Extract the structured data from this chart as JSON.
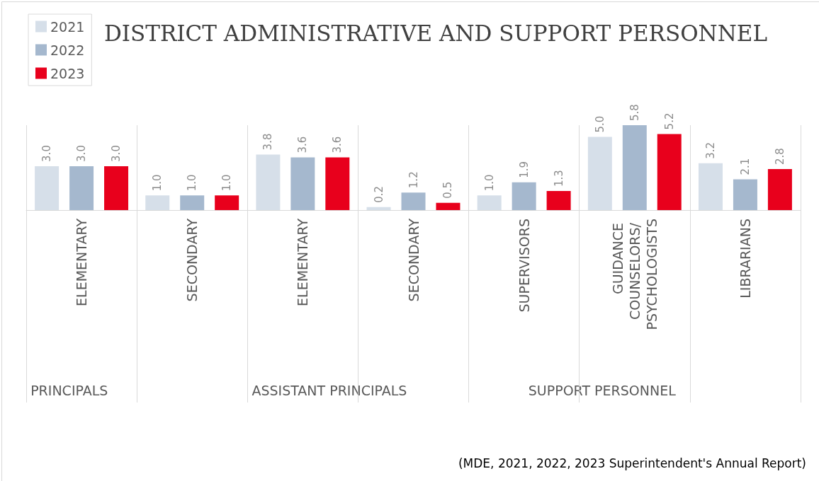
{
  "chart_data": {
    "type": "bar",
    "title": "DISTRICT ADMINISTRATIVE AND SUPPORT PERSONNEL",
    "categories": [
      "ELEMENTARY",
      "SECONDARY",
      "ELEMENTARY",
      "SECONDARY",
      "SUPERVISORS",
      "GUIDANCE COUNSELORS/ PSYCHOLOGISTS",
      "LIBRARIANS"
    ],
    "series": [
      {
        "name": "2021",
        "color": "#d6dfe9",
        "values": [
          3.0,
          1.0,
          3.8,
          0.2,
          1.0,
          5.0,
          3.2
        ],
        "value_labels": [
          "3.0",
          "1.0",
          "3.8",
          "0.2",
          "1.0",
          "5.0",
          "3.2"
        ]
      },
      {
        "name": "2022",
        "color": "#a5b8ce",
        "values": [
          3.0,
          1.0,
          3.6,
          1.2,
          1.9,
          5.8,
          2.1
        ],
        "value_labels": [
          "3.0",
          "1.0",
          "3.6",
          "1.2",
          "1.9",
          "5.8",
          "2.1"
        ]
      },
      {
        "name": "2023",
        "color": "#e8001c",
        "values": [
          3.0,
          1.0,
          3.6,
          0.5,
          1.3,
          5.2,
          2.8
        ],
        "value_labels": [
          "3.0",
          "1.0",
          "3.6",
          "0.5",
          "1.3",
          "5.2",
          "2.8"
        ]
      }
    ],
    "annotations": [
      "PRINCIPALS",
      "ASSISTANT PRINCIPALS",
      "SUPPORT PERSONNEL",
      "(MDE, 2021, 2022, 2023 Superintendent's Annual Report)"
    ],
    "legend": "top left",
    "grid": false
  }
}
